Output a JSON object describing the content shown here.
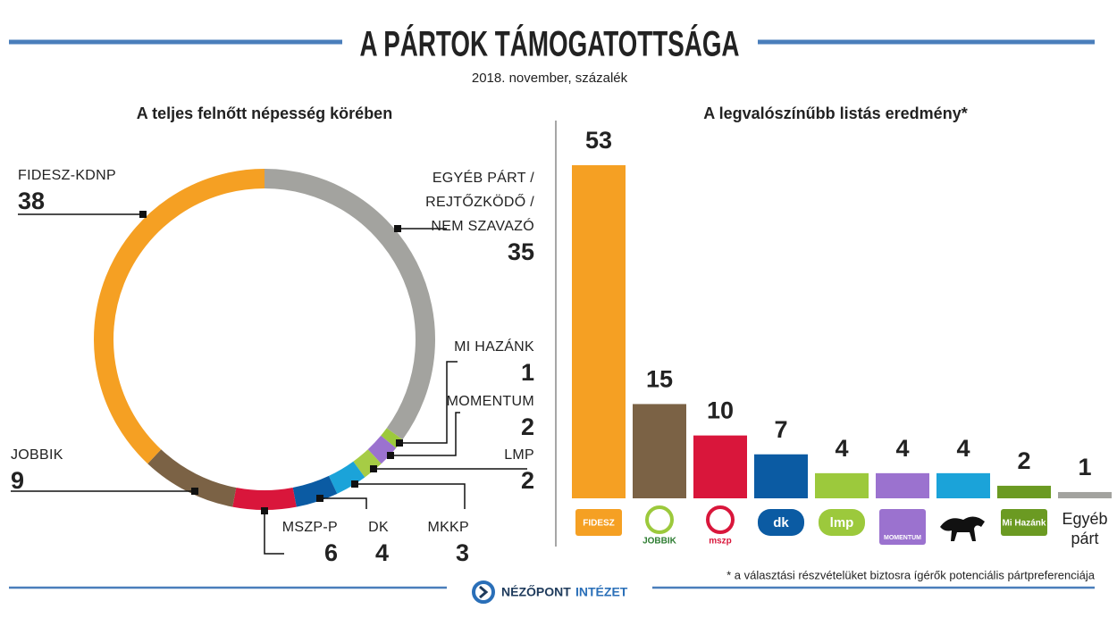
{
  "header": {
    "title": "A PÁRTOK TÁMOGATOTTSÁGA",
    "subtitle": "2018. november, százalék"
  },
  "chart_data": [
    {
      "type": "donut",
      "title": "A teljes felnőtt népesség körében",
      "categories": [
        "EGYÉB PÁRT /\nREJTŐZKÖDŐ /\nNEM SZAVAZÓ",
        "MI HAZÁNK",
        "MOMENTUM",
        "LMP",
        "MKKP",
        "DK",
        "MSZP-P",
        "JOBBIK",
        "FIDESZ-KDNP"
      ],
      "values": [
        35,
        1,
        2,
        2,
        3,
        4,
        6,
        9,
        38
      ],
      "colors": [
        "#a3a39f",
        "#9cc93c",
        "#9b72cf",
        "#a6cc45",
        "#1ba3d9",
        "#0b5ba3",
        "#d9163b",
        "#7b6245",
        "#f5a023"
      ]
    },
    {
      "type": "bar",
      "title": "A legvalószínűbb listás eredmény*",
      "categories": [
        "FIDESZ",
        "JOBBIK",
        "mszp",
        "dk",
        "lmp",
        "MOMENTUM",
        null,
        "Mi Hazánk",
        "Egyéb\npárt"
      ],
      "values": [
        53,
        15,
        10,
        7,
        4,
        4,
        4,
        2,
        1
      ],
      "colors": [
        "#f5a023",
        "#7b6245",
        "#d9163b",
        "#0b5ba3",
        "#9cc93c",
        "#9b72cf",
        "#1ba3d9",
        "#6b9a22",
        "#a3a39f"
      ],
      "ylim": [
        0,
        53
      ],
      "note": "* a választási részvételüket biztosra ígérők potenciális pártpreferenciája"
    }
  ],
  "footer": {
    "brand": "NÉZŐPONT",
    "brand2": "INTÉZET"
  }
}
